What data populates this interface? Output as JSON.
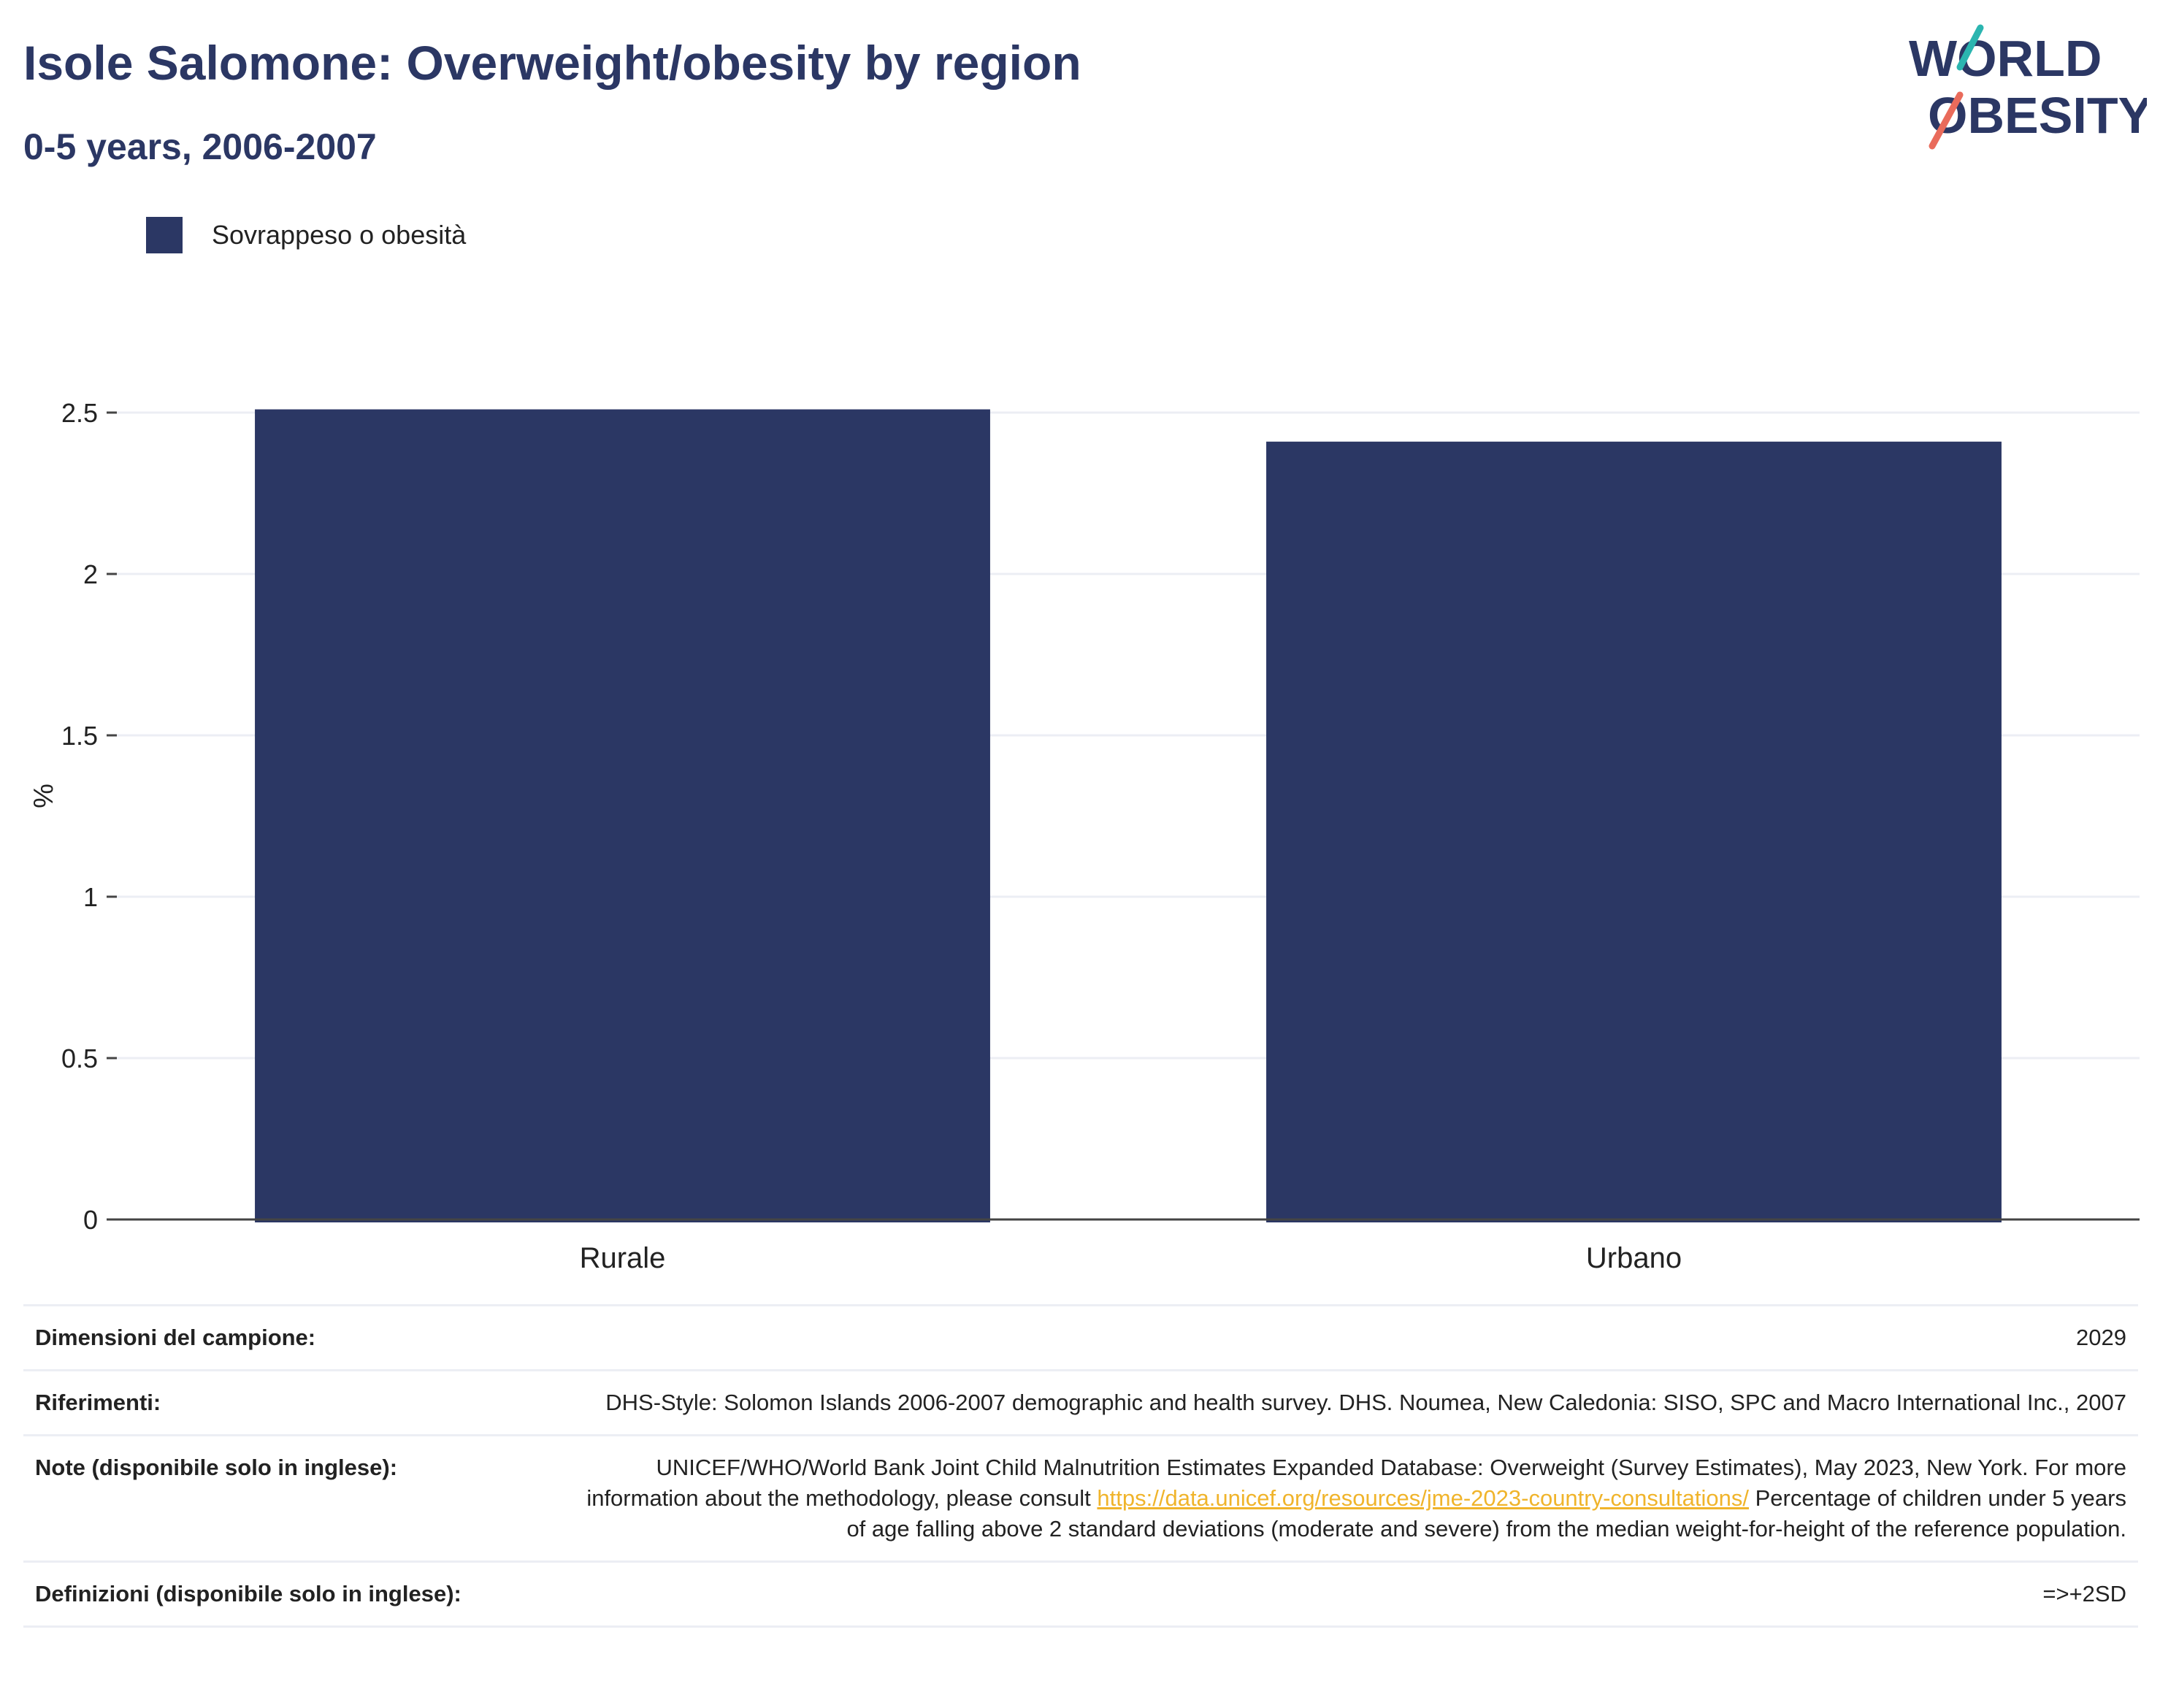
{
  "header": {
    "title": "Isole Salomone: Overweight/obesity by region",
    "subtitle": "0-5 years, 2006-2007"
  },
  "logo": {
    "line1": "WORLD",
    "line2": "OBESITY"
  },
  "colors": {
    "bar": "#2b3764",
    "title": "#2b3764",
    "grid": "#eceef4",
    "link": "#f0b42b"
  },
  "chart_data": {
    "type": "bar",
    "categories": [
      "Rurale",
      "Urbano"
    ],
    "series": [
      {
        "name": "Sovrappeso o obesità",
        "values": [
          2.51,
          2.41
        ]
      }
    ],
    "ylabel": "%",
    "xlabel": "",
    "ylim": [
      0,
      2.5
    ],
    "yticks": [
      0,
      0.5,
      1,
      1.5,
      2,
      2.5
    ],
    "ytick_labels": [
      "0",
      "0.5",
      "1",
      "1.5",
      "2",
      "2.5"
    ],
    "grid": true,
    "legend": "top-left"
  },
  "info": {
    "sample": {
      "label": "Dimensioni del campione:",
      "value": "2029"
    },
    "refs": {
      "label": "Riferimenti:",
      "value": "DHS-Style: Solomon Islands 2006-2007 demographic and health survey. DHS. Noumea, New Caledonia: SISO, SPC and Macro International Inc., 2007"
    },
    "notes": {
      "label": "Note (disponibile solo in inglese):",
      "text1": "UNICEF/WHO/World Bank Joint Child Malnutrition Estimates Expanded Database: Overweight (Survey Estimates), May 2023, New York. For more information about the methodology, please consult",
      "link": "https://data.unicef.org/resources/jme-2023-country-consultations/",
      "text2": "Percentage of children under 5 years of age falling above 2 standard deviations (moderate and severe) from the median weight-for-height of the reference population."
    },
    "defs": {
      "label": "Definizioni (disponibile solo in inglese):",
      "value": "=>+2SD"
    }
  }
}
